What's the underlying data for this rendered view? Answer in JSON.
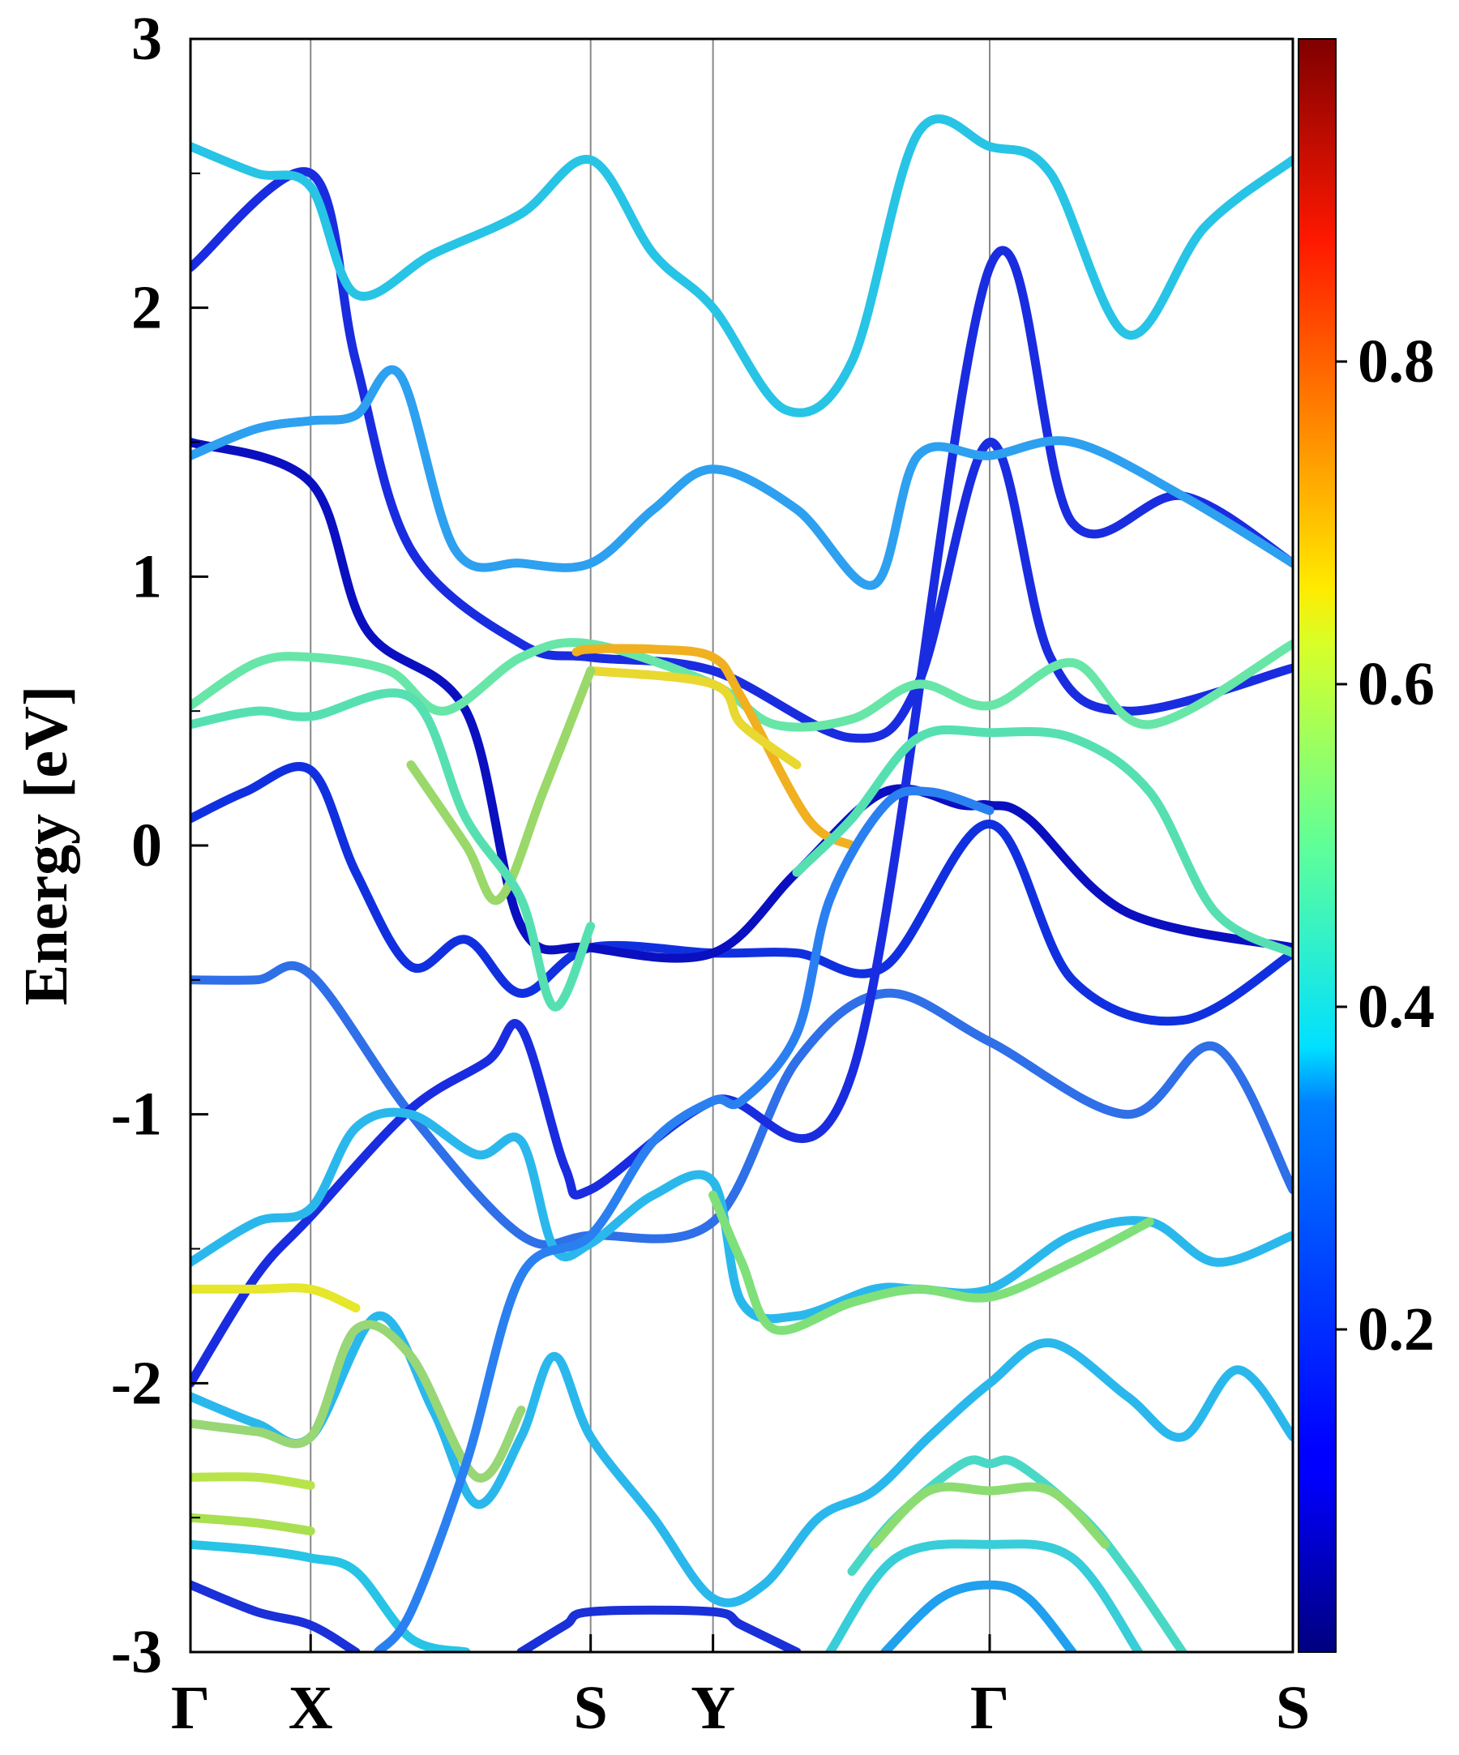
{
  "chart_data": {
    "type": "line",
    "title": "",
    "xlabel": "",
    "ylabel": "Energy [eV]",
    "ylim": [
      -3,
      3
    ],
    "xlim": [
      0,
      1
    ],
    "x_ticks": [
      {
        "label": "Γ",
        "pos": 0.0
      },
      {
        "label": "X",
        "pos": 0.109
      },
      {
        "label": "S",
        "pos": 0.363
      },
      {
        "label": "Y",
        "pos": 0.474
      },
      {
        "label": "Γ",
        "pos": 0.725
      },
      {
        "label": "S",
        "pos": 1.0
      }
    ],
    "y_ticks": [
      {
        "label": "3",
        "value": 3
      },
      {
        "label": "2",
        "value": 2
      },
      {
        "label": "1",
        "value": 1
      },
      {
        "label": "0",
        "value": 0
      },
      {
        "label": "-1",
        "value": -1
      },
      {
        "label": "-2",
        "value": -2
      },
      {
        "label": "-3",
        "value": -3
      }
    ],
    "colorbar": {
      "colormap": "jet",
      "range": [
        0.0,
        1.0
      ],
      "ticks": [
        {
          "label": "0.2",
          "value": 0.2
        },
        {
          "label": "0.4",
          "value": 0.4
        },
        {
          "label": "0.6",
          "value": 0.6
        },
        {
          "label": "0.8",
          "value": 0.8
        }
      ]
    },
    "series": [
      {
        "color": "#2f6fe8",
        "values": [
          [
            0,
            -0.5
          ],
          [
            0.06,
            -0.5
          ],
          [
            0.109,
            -0.48
          ],
          [
            0.2,
            -1.0
          ],
          [
            0.3,
            -1.45
          ],
          [
            0.363,
            -1.45
          ],
          [
            0.474,
            -1.4
          ],
          [
            0.55,
            -0.8
          ],
          [
            0.63,
            -0.55
          ],
          [
            0.725,
            -0.73
          ],
          [
            0.85,
            -1.0
          ],
          [
            0.93,
            -0.75
          ],
          [
            1.0,
            -1.28
          ]
        ]
      },
      {
        "color": "#1030e0",
        "values": [
          [
            0,
            0.1
          ],
          [
            0.05,
            0.2
          ],
          [
            0.109,
            0.28
          ],
          [
            0.15,
            -0.1
          ],
          [
            0.2,
            -0.45
          ],
          [
            0.25,
            -0.35
          ],
          [
            0.3,
            -0.55
          ],
          [
            0.363,
            -0.38
          ],
          [
            0.474,
            -0.4
          ],
          [
            0.55,
            -0.4
          ],
          [
            0.63,
            -0.45
          ],
          [
            0.725,
            0.08
          ],
          [
            0.8,
            -0.5
          ],
          [
            0.9,
            -0.65
          ],
          [
            1.0,
            -0.4
          ]
        ]
      },
      {
        "color": "#0a10c0",
        "values": [
          [
            0,
            1.5
          ],
          [
            0.109,
            1.35
          ],
          [
            0.16,
            0.8
          ],
          [
            0.25,
            0.5
          ],
          [
            0.3,
            -0.3
          ],
          [
            0.363,
            -0.38
          ],
          [
            0.474,
            -0.4
          ],
          [
            0.55,
            -0.1
          ],
          [
            0.63,
            0.2
          ],
          [
            0.7,
            0.15
          ],
          [
            0.725,
            0.15
          ],
          [
            0.76,
            0.1
          ],
          [
            0.85,
            -0.25
          ],
          [
            1.0,
            -0.38
          ]
        ]
      },
      {
        "color": "#1a2ce0",
        "values": [
          [
            0,
            2.15
          ],
          [
            0.109,
            2.5
          ],
          [
            0.15,
            1.8
          ],
          [
            0.2,
            1.1
          ],
          [
            0.3,
            0.75
          ],
          [
            0.363,
            0.7
          ],
          [
            0.474,
            0.65
          ],
          [
            0.6,
            0.4
          ],
          [
            0.66,
            0.6
          ],
          [
            0.725,
            1.5
          ],
          [
            0.78,
            0.7
          ],
          [
            0.85,
            0.5
          ],
          [
            1.0,
            0.66
          ]
        ]
      },
      {
        "color": "#1a2ce0",
        "values": [
          [
            0,
            -2.0
          ],
          [
            0.06,
            -1.6
          ],
          [
            0.109,
            -1.38
          ],
          [
            0.2,
            -0.98
          ],
          [
            0.27,
            -0.8
          ],
          [
            0.3,
            -0.68
          ],
          [
            0.34,
            -1.2
          ],
          [
            0.363,
            -1.28
          ],
          [
            0.474,
            -0.95
          ],
          [
            0.6,
            -0.85
          ],
          [
            0.725,
            2.15
          ],
          [
            0.8,
            1.2
          ],
          [
            0.9,
            1.3
          ],
          [
            1.0,
            1.05
          ]
        ]
      },
      {
        "color": "#27c4e6",
        "values": [
          [
            0,
            2.6
          ],
          [
            0.06,
            2.5
          ],
          [
            0.109,
            2.45
          ],
          [
            0.15,
            2.05
          ],
          [
            0.22,
            2.2
          ],
          [
            0.3,
            2.35
          ],
          [
            0.363,
            2.55
          ],
          [
            0.42,
            2.2
          ],
          [
            0.474,
            2.0
          ],
          [
            0.54,
            1.62
          ],
          [
            0.6,
            1.8
          ],
          [
            0.66,
            2.65
          ],
          [
            0.725,
            2.6
          ],
          [
            0.78,
            2.5
          ],
          [
            0.85,
            1.9
          ],
          [
            0.92,
            2.3
          ],
          [
            1.0,
            2.55
          ]
        ]
      },
      {
        "color": "#2ea0f0",
        "values": [
          [
            0,
            1.45
          ],
          [
            0.06,
            1.55
          ],
          [
            0.109,
            1.58
          ],
          [
            0.15,
            1.6
          ],
          [
            0.19,
            1.75
          ],
          [
            0.24,
            1.1
          ],
          [
            0.3,
            1.05
          ],
          [
            0.363,
            1.05
          ],
          [
            0.42,
            1.25
          ],
          [
            0.474,
            1.4
          ],
          [
            0.55,
            1.25
          ],
          [
            0.62,
            0.97
          ],
          [
            0.66,
            1.45
          ],
          [
            0.725,
            1.45
          ],
          [
            0.8,
            1.5
          ],
          [
            0.9,
            1.3
          ],
          [
            1.0,
            1.05
          ]
        ]
      },
      {
        "color": "#67e6a8",
        "values": [
          [
            0,
            0.52
          ],
          [
            0.06,
            0.68
          ],
          [
            0.109,
            0.7
          ],
          [
            0.18,
            0.65
          ],
          [
            0.23,
            0.5
          ],
          [
            0.3,
            0.7
          ],
          [
            0.363,
            0.75
          ],
          [
            0.474,
            0.6
          ],
          [
            0.53,
            0.45
          ],
          [
            0.6,
            0.47
          ],
          [
            0.66,
            0.6
          ],
          [
            0.725,
            0.52
          ],
          [
            0.8,
            0.68
          ],
          [
            0.87,
            0.45
          ],
          [
            1.0,
            0.75
          ]
        ]
      },
      {
        "color": "#f0b020",
        "values": [
          [
            0.35,
            0.72
          ],
          [
            0.363,
            0.73
          ],
          [
            0.42,
            0.73
          ],
          [
            0.474,
            0.7
          ],
          [
            0.5,
            0.55
          ],
          [
            0.56,
            0.1
          ],
          [
            0.6,
            0.0
          ]
        ]
      },
      {
        "color": "#e8d830",
        "values": [
          [
            0.363,
            0.65
          ],
          [
            0.474,
            0.6
          ],
          [
            0.5,
            0.45
          ],
          [
            0.55,
            0.3
          ]
        ]
      },
      {
        "color": "#9ad86a",
        "values": [
          [
            0.2,
            0.3
          ],
          [
            0.25,
            0.0
          ],
          [
            0.28,
            -0.2
          ],
          [
            0.32,
            0.2
          ],
          [
            0.363,
            0.65
          ]
        ]
      },
      {
        "color": "#56e0b2",
        "values": [
          [
            0,
            0.45
          ],
          [
            0.06,
            0.5
          ],
          [
            0.109,
            0.48
          ],
          [
            0.2,
            0.55
          ],
          [
            0.25,
            0.1
          ],
          [
            0.3,
            -0.2
          ],
          [
            0.33,
            -0.6
          ],
          [
            0.363,
            -0.3
          ]
        ]
      },
      {
        "color": "#56e0b2",
        "values": [
          [
            0.55,
            -0.1
          ],
          [
            0.6,
            0.1
          ],
          [
            0.66,
            0.4
          ],
          [
            0.725,
            0.42
          ],
          [
            0.8,
            0.4
          ],
          [
            0.87,
            0.2
          ],
          [
            0.93,
            -0.25
          ],
          [
            1.0,
            -0.4
          ]
        ]
      },
      {
        "color": "#2ab8ec",
        "values": [
          [
            0,
            -1.55
          ],
          [
            0.06,
            -1.4
          ],
          [
            0.109,
            -1.35
          ],
          [
            0.15,
            -1.05
          ],
          [
            0.2,
            -1.0
          ],
          [
            0.26,
            -1.15
          ],
          [
            0.3,
            -1.1
          ],
          [
            0.33,
            -1.5
          ],
          [
            0.363,
            -1.48
          ],
          [
            0.42,
            -1.3
          ],
          [
            0.474,
            -1.25
          ],
          [
            0.5,
            -1.7
          ],
          [
            0.55,
            -1.75
          ],
          [
            0.62,
            -1.65
          ],
          [
            0.66,
            -1.65
          ],
          [
            0.725,
            -1.65
          ],
          [
            0.8,
            -1.45
          ],
          [
            0.87,
            -1.4
          ],
          [
            0.93,
            -1.55
          ],
          [
            1.0,
            -1.45
          ]
        ]
      },
      {
        "color": "#e6e62a",
        "values": [
          [
            0,
            -1.65
          ],
          [
            0.06,
            -1.65
          ],
          [
            0.109,
            -1.65
          ],
          [
            0.15,
            -1.72
          ]
        ]
      },
      {
        "color": "#7fe07a",
        "values": [
          [
            0.474,
            -1.3
          ],
          [
            0.5,
            -1.55
          ],
          [
            0.53,
            -1.8
          ],
          [
            0.6,
            -1.7
          ],
          [
            0.66,
            -1.65
          ],
          [
            0.725,
            -1.68
          ],
          [
            0.8,
            -1.55
          ],
          [
            0.87,
            -1.4
          ]
        ]
      },
      {
        "color": "#2ab8ec",
        "values": [
          [
            0,
            -2.05
          ],
          [
            0.06,
            -2.15
          ],
          [
            0.109,
            -2.2
          ],
          [
            0.17,
            -1.75
          ],
          [
            0.22,
            -2.1
          ],
          [
            0.26,
            -2.45
          ],
          [
            0.3,
            -2.2
          ],
          [
            0.33,
            -1.9
          ],
          [
            0.363,
            -2.2
          ],
          [
            0.42,
            -2.5
          ],
          [
            0.474,
            -2.8
          ],
          [
            0.52,
            -2.75
          ],
          [
            0.57,
            -2.5
          ],
          [
            0.62,
            -2.4
          ],
          [
            0.67,
            -2.2
          ],
          [
            0.725,
            -2.0
          ],
          [
            0.78,
            -1.85
          ],
          [
            0.85,
            -2.05
          ],
          [
            0.9,
            -2.2
          ],
          [
            0.95,
            -1.95
          ],
          [
            1.0,
            -2.2
          ]
        ]
      },
      {
        "color": "#98d676",
        "values": [
          [
            0,
            -2.15
          ],
          [
            0.06,
            -2.18
          ],
          [
            0.109,
            -2.2
          ],
          [
            0.15,
            -1.8
          ],
          [
            0.2,
            -1.9
          ],
          [
            0.26,
            -2.35
          ],
          [
            0.3,
            -2.1
          ]
        ]
      },
      {
        "color": "#b8e44a",
        "values": [
          [
            0,
            -2.35
          ],
          [
            0.06,
            -2.35
          ],
          [
            0.109,
            -2.38
          ]
        ]
      },
      {
        "color": "#a8e050",
        "values": [
          [
            0,
            -2.5
          ],
          [
            0.06,
            -2.52
          ],
          [
            0.109,
            -2.55
          ]
        ]
      },
      {
        "color": "#27c4e6",
        "values": [
          [
            0,
            -2.6
          ],
          [
            0.06,
            -2.62
          ],
          [
            0.109,
            -2.65
          ],
          [
            0.15,
            -2.7
          ],
          [
            0.2,
            -2.95
          ],
          [
            0.25,
            -3.0
          ]
        ]
      },
      {
        "color": "#1a30d8",
        "values": [
          [
            0,
            -2.75
          ],
          [
            0.06,
            -2.85
          ],
          [
            0.109,
            -2.9
          ],
          [
            0.15,
            -3.0
          ]
        ]
      },
      {
        "color": "#1a30d8",
        "values": [
          [
            0.3,
            -3.0
          ],
          [
            0.34,
            -2.9
          ],
          [
            0.363,
            -2.85
          ],
          [
            0.474,
            -2.85
          ],
          [
            0.5,
            -2.9
          ],
          [
            0.55,
            -3.0
          ]
        ]
      },
      {
        "color": "#2a80f0",
        "values": [
          [
            0.17,
            -3.0
          ],
          [
            0.2,
            -2.85
          ],
          [
            0.25,
            -2.3
          ],
          [
            0.3,
            -1.6
          ],
          [
            0.363,
            -1.45
          ],
          [
            0.42,
            -1.1
          ],
          [
            0.474,
            -0.95
          ],
          [
            0.5,
            -0.95
          ],
          [
            0.55,
            -0.7
          ],
          [
            0.58,
            -0.2
          ],
          [
            0.63,
            0.15
          ],
          [
            0.67,
            0.2
          ],
          [
            0.725,
            0.13
          ]
        ]
      },
      {
        "color": "#4ad8c6",
        "values": [
          [
            0.6,
            -2.7
          ],
          [
            0.64,
            -2.5
          ],
          [
            0.7,
            -2.3
          ],
          [
            0.725,
            -2.3
          ],
          [
            0.75,
            -2.3
          ],
          [
            0.81,
            -2.5
          ],
          [
            0.85,
            -2.7
          ],
          [
            0.9,
            -3.0
          ]
        ]
      },
      {
        "color": "#8ddc72",
        "values": [
          [
            0.62,
            -2.6
          ],
          [
            0.67,
            -2.4
          ],
          [
            0.725,
            -2.4
          ],
          [
            0.78,
            -2.4
          ],
          [
            0.83,
            -2.6
          ]
        ]
      },
      {
        "color": "#37cdd9",
        "values": [
          [
            0.58,
            -3.0
          ],
          [
            0.64,
            -2.65
          ],
          [
            0.725,
            -2.6
          ],
          [
            0.8,
            -2.65
          ],
          [
            0.86,
            -3.0
          ]
        ]
      },
      {
        "color": "#20a0ee",
        "values": [
          [
            0.63,
            -3.0
          ],
          [
            0.68,
            -2.8
          ],
          [
            0.725,
            -2.75
          ],
          [
            0.76,
            -2.8
          ],
          [
            0.8,
            -3.0
          ]
        ]
      }
    ]
  }
}
